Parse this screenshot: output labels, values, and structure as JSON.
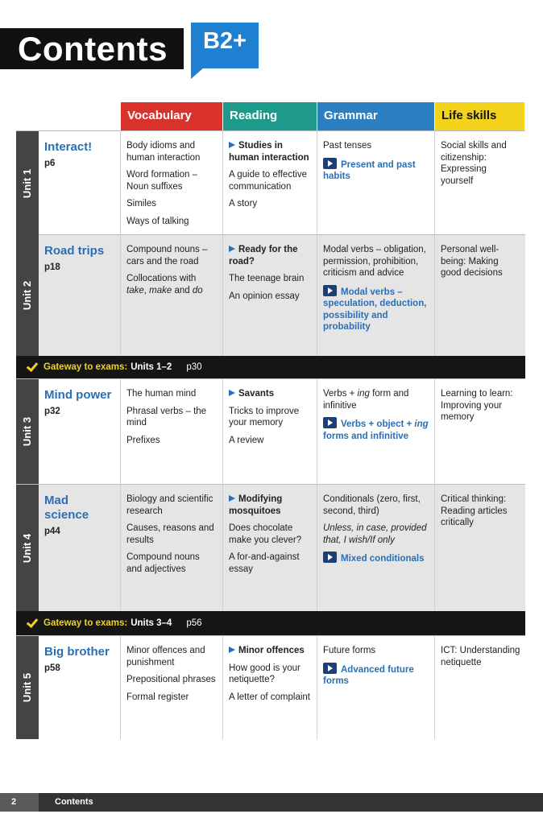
{
  "header": {
    "title": "Contents",
    "level": "B2+"
  },
  "columns": [
    {
      "label": "Vocabulary",
      "color": "#d9322b"
    },
    {
      "label": "Reading",
      "color": "#1e9a8a"
    },
    {
      "label": "Grammar",
      "color": "#2b7fc1"
    },
    {
      "label": "Life skills",
      "color": "#f2d21b"
    }
  ],
  "rows": [
    {
      "unit": "Unit 1",
      "title": "Interact!",
      "page": "p6",
      "vocabulary": [
        "Body idioms and human interaction",
        "Word formation – Noun suffixes",
        "Similes",
        "Ways of talking"
      ],
      "reading": {
        "video": "Studies in human interaction",
        "items": [
          "A guide to effective communication",
          "A story"
        ]
      },
      "grammar": {
        "items": [
          "Past tenses"
        ],
        "highlight": "Present and past habits"
      },
      "life_skills": "Social skills and citizenship: Expressing yourself"
    },
    {
      "unit": "Unit 2",
      "title": "Road trips",
      "page": "p18",
      "vocabulary": [
        "Compound nouns – cars and the road",
        [
          "Collocations with ",
          {
            "italic": "take"
          },
          ", ",
          {
            "italic": "make"
          },
          " and ",
          {
            "italic": "do"
          }
        ]
      ],
      "reading": {
        "video": "Ready for the road?",
        "items": [
          "The teenage brain",
          "An opinion essay"
        ]
      },
      "grammar": {
        "items": [
          "Modal verbs – obligation, permission, prohibition, criticism and advice"
        ],
        "highlight": "Modal verbs – speculation, deduction, possibility and probability"
      },
      "life_skills": "Personal well-being: Making good decisions"
    },
    {
      "gateway": {
        "label": "Gateway to exams:",
        "units": "Units 1–2",
        "page": "p30"
      }
    },
    {
      "unit": "Unit 3",
      "title": "Mind power",
      "page": "p32",
      "vocabulary": [
        "The human mind",
        "Phrasal verbs – the mind",
        "Prefixes"
      ],
      "reading": {
        "video": "Savants",
        "items": [
          "Tricks to improve your memory",
          "A review"
        ]
      },
      "grammar": {
        "items": [
          [
            "Verbs + ",
            {
              "italic": "ing"
            },
            " form and infinitive"
          ]
        ],
        "highlight": [
          "Verbs + object + ",
          {
            "italic": "ing"
          },
          " forms and infinitive"
        ]
      },
      "life_skills": "Learning to learn: Improving your memory"
    },
    {
      "unit": "Unit 4",
      "title": "Mad science",
      "page": "p44",
      "vocabulary": [
        "Biology and scientific research",
        "Causes, reasons and results",
        "Compound nouns and adjectives"
      ],
      "reading": {
        "video": "Modifying mosquitoes",
        "items": [
          "Does chocolate make you clever?",
          "A for-and-against essay"
        ]
      },
      "grammar": {
        "items": [
          "Conditionals (zero, first, second, third)",
          [
            {
              "italic": "Unless, in case, provided that, I wish/If only"
            }
          ]
        ],
        "highlight": "Mixed conditionals"
      },
      "life_skills": "Critical thinking: Reading articles critically"
    },
    {
      "gateway": {
        "label": "Gateway to exams:",
        "units": "Units 3–4",
        "page": "p56"
      }
    },
    {
      "unit": "Unit 5",
      "title": "Big brother",
      "page": "p58",
      "vocabulary": [
        "Minor offences and punishment",
        "Prepositional phrases",
        "Formal register"
      ],
      "reading": {
        "video": "Minor offences",
        "items": [
          "How good is your netiquette?",
          "A letter of complaint"
        ]
      },
      "grammar": {
        "items": [
          "Future forms"
        ],
        "highlight": "Advanced future forms"
      },
      "life_skills": "ICT: Understanding netiquette"
    }
  ],
  "footer": {
    "page_number": "2",
    "section": "Contents"
  }
}
